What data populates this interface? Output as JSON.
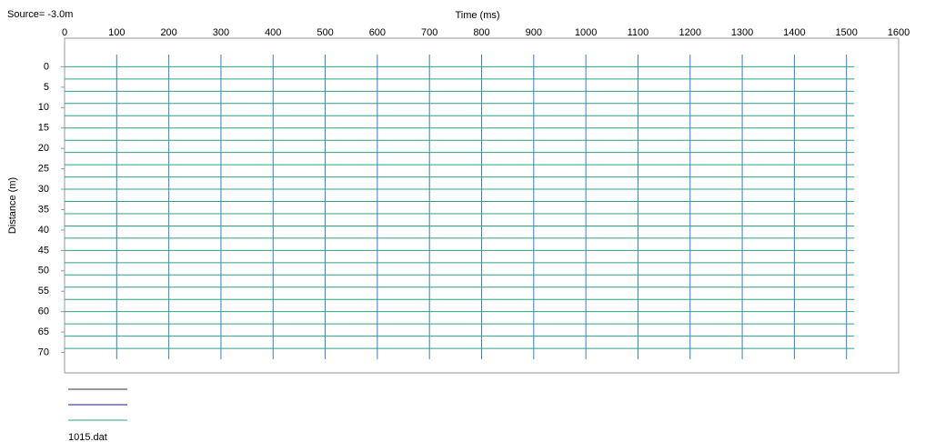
{
  "chart_data": {
    "type": "wiggle",
    "title": "Source= -3.0m",
    "x_label": "Time (ms)",
    "y_label": "Distance (m)",
    "xlim": [
      0,
      1600
    ],
    "xticks": [
      0,
      100,
      200,
      300,
      400,
      500,
      600,
      700,
      800,
      900,
      1000,
      1100,
      1200,
      1300,
      1400,
      1500,
      1600
    ],
    "ylim": [
      -7,
      75
    ],
    "yticks": [
      0,
      5,
      10,
      15,
      20,
      25,
      30,
      35,
      40,
      45,
      50,
      55,
      60,
      65,
      70
    ],
    "grid": true,
    "grid_color": "#2f7fd0",
    "trace_color": "#2aa08a",
    "trace_distances": [
      0,
      3,
      6,
      9,
      12,
      15,
      18,
      21,
      24,
      27,
      30,
      33,
      36,
      39,
      42,
      45,
      48,
      51,
      54,
      57,
      60,
      63,
      66,
      69
    ],
    "trace_end": 1515,
    "legend_colors": [
      "#333333",
      "#1a1a8c",
      "#2aa08a"
    ],
    "file": "1015.dat"
  }
}
